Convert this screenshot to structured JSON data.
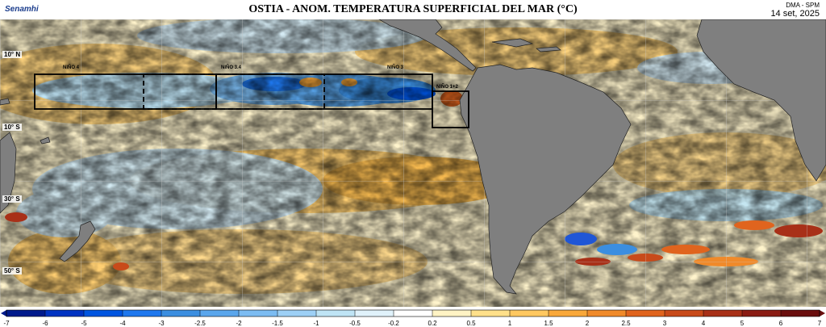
{
  "header": {
    "logo_text": "Senamhi",
    "title": "OSTIA - ANOM. TEMPERATURA SUPERFICIAL DEL MAR (°C)",
    "org": "DMA - SPM",
    "date": "14 set, 2025"
  },
  "map": {
    "lat_labels": [
      "10° N",
      "10° S",
      "30° S",
      "50° S"
    ],
    "regions": [
      {
        "label": "NIÑO 4"
      },
      {
        "label": "NIÑO 3.4"
      },
      {
        "label": "NIÑO 3"
      },
      {
        "label": "NIÑO 1+2"
      }
    ],
    "colors": {
      "land": "#7f7f7f",
      "ocean_warm_light": "#ffe9a3",
      "ocean_warm": "#f8b84a",
      "ocean_hot": "#c0381e",
      "ocean_cool": "#bfe4f5",
      "ocean_cold": "#3b8ee0",
      "ocean_very_cold": "#0b36b0"
    }
  },
  "colorbar": {
    "ticks": [
      "-7",
      "-6",
      "-5",
      "-4",
      "-3",
      "-2.5",
      "-2",
      "-1.5",
      "-1",
      "-0.5",
      "-0.2",
      "0.2",
      "0.5",
      "1",
      "1.5",
      "2",
      "2.5",
      "3",
      "4",
      "5",
      "6",
      "7"
    ],
    "colors": [
      "#001a8c",
      "#0033c2",
      "#0055e0",
      "#1f78ee",
      "#3b8ee0",
      "#5aa6ec",
      "#7cbcf2",
      "#9dd0f6",
      "#bfe4f5",
      "#e0f2fb",
      "#ffffff",
      "#fff3c4",
      "#ffe08a",
      "#ffc860",
      "#f9a83a",
      "#f08a2a",
      "#e0641e",
      "#c84a1a",
      "#a83018",
      "#8a1c14",
      "#6a0e0e"
    ]
  }
}
